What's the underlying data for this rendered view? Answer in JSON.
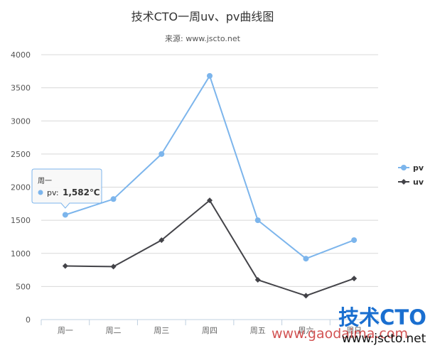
{
  "chart_data": {
    "type": "line",
    "title": "技术CTO一周uv、pv曲线图",
    "subtitle": "来源: www.jscto.net",
    "categories": [
      "周一",
      "周二",
      "周三",
      "周四",
      "周五",
      "周六",
      "周日"
    ],
    "series": [
      {
        "name": "pv",
        "color": "#7cb5ec",
        "marker": "circle",
        "values": [
          1582,
          1820,
          2500,
          3680,
          1500,
          920,
          1200
        ]
      },
      {
        "name": "uv",
        "color": "#434348",
        "marker": "diamond",
        "values": [
          810,
          800,
          1200,
          1800,
          600,
          360,
          620
        ]
      }
    ],
    "ylim": [
      0,
      4000
    ],
    "yticks": [
      "0",
      "500",
      "1000",
      "1500",
      "2000",
      "2500",
      "3000",
      "3500",
      "4000"
    ],
    "grid": true,
    "legend": "right",
    "tooltip": {
      "header": "周一",
      "series_label": "pv: ",
      "value_text": "1,582℃",
      "category_index": 0,
      "series_index": 0
    }
  },
  "watermark": {
    "logo": "技术CTO",
    "url_top": "www.gaodaima.com",
    "url_bottom": "www.jscto.net"
  }
}
